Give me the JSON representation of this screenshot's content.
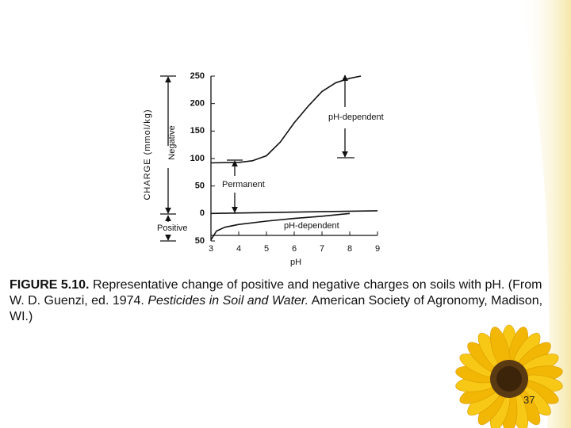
{
  "chart_data": {
    "type": "line",
    "x_label": "pH",
    "y_label": "CHARGE (mmol/kg)",
    "xlim": [
      3,
      9
    ],
    "xticks": [
      3,
      4,
      5,
      6,
      7,
      8,
      9
    ],
    "ylim": [
      -50,
      250
    ],
    "yticks": [
      250,
      200,
      150,
      100,
      50,
      0,
      {
        "value": -50,
        "label": "50"
      }
    ],
    "series": [
      {
        "color": "#111111",
        "x": [
          3,
          4,
          4.5,
          5,
          5.5,
          6,
          6.5,
          7,
          7.5,
          8,
          8.4
        ],
        "values": [
          92,
          93,
          96,
          105,
          130,
          165,
          195,
          222,
          238,
          246,
          250
        ]
      },
      {
        "color": "#111111",
        "x": [
          3,
          9
        ],
        "values": [
          0,
          5
        ]
      },
      {
        "color": "#111111",
        "x": [
          3,
          3.2,
          3.5,
          4,
          5,
          6,
          7,
          8
        ],
        "values": [
          -48,
          -32,
          -25,
          -20,
          -14,
          -9,
          -5,
          0
        ]
      }
    ],
    "annotations": [
      "pH-dependent",
      "Permanent",
      "Positive",
      "pH-dependent",
      "Negative"
    ]
  },
  "caption": {
    "label": "FIGURE 5.10.",
    "text": "Representative change of positive and negative charges on soils with pH. (From W. D. Guenzi, ed. 1974.",
    "italic": "Pesticides in Soil and Water.",
    "text2": "American Society of Agronomy, Madison, WI.)"
  },
  "page_number": "37"
}
